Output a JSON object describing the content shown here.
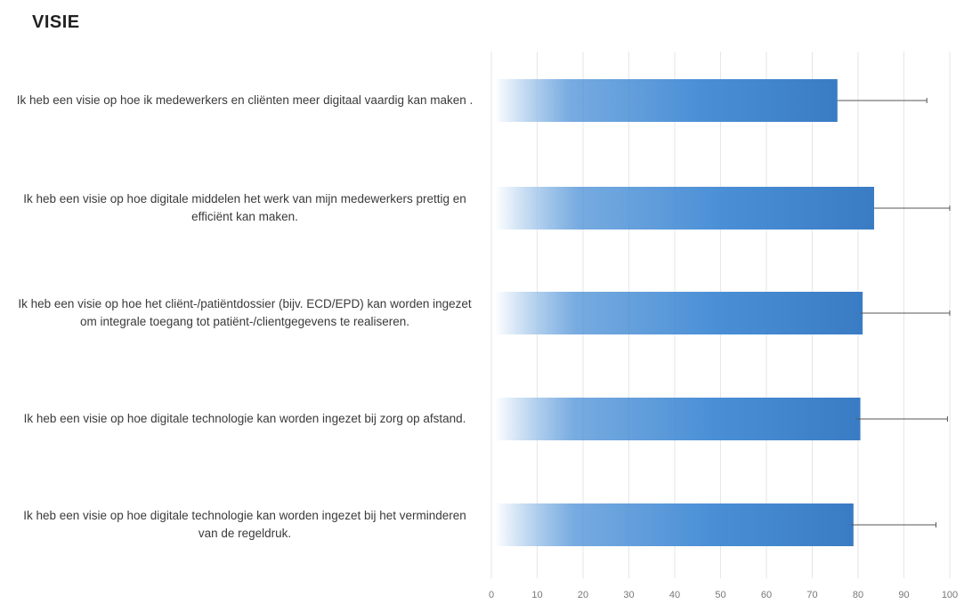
{
  "page": {
    "title": "VISIE"
  },
  "colors": {
    "bar_main": "#4a8fd6",
    "bar_dark": "#3a7cc4",
    "bar_fade": "#ffffff",
    "gridline": "#e6e6e6",
    "error_bar": "#555555"
  },
  "chart_data": {
    "type": "bar",
    "orientation": "horizontal",
    "title": "VISIE",
    "xlabel": "",
    "ylabel": "",
    "xlim": [
      0,
      100
    ],
    "x_ticks": [
      0,
      10,
      20,
      30,
      40,
      50,
      60,
      70,
      80,
      90,
      100
    ],
    "grid": true,
    "legend": "none",
    "categories": [
      "Ik heb een visie op hoe ik medewerkers en cliënten meer digitaal vaardig kan maken .",
      "Ik heb een visie op hoe digitale middelen het werk van mijn medewerkers prettig en efficiënt kan maken.",
      "Ik heb een visie op hoe het cliënt-/patiëntdossier (bijv. ECD/EPD) kan worden ingezet om integrale toegang tot patiënt-/clientgegevens te realiseren.",
      "Ik heb een visie op hoe digitale technologie kan worden ingezet bij zorg op afstand.",
      "Ik heb een visie op hoe digitale technologie kan worden ingezet bij het verminderen van de regeldruk."
    ],
    "series": [
      {
        "values": [
          75.5,
          83.5,
          81,
          80.5,
          79
        ],
        "error_upper": [
          95,
          100,
          100,
          99.5,
          97
        ],
        "error_lower": [
          75.5,
          83.5,
          80.5,
          79.5,
          78.5
        ]
      }
    ]
  }
}
